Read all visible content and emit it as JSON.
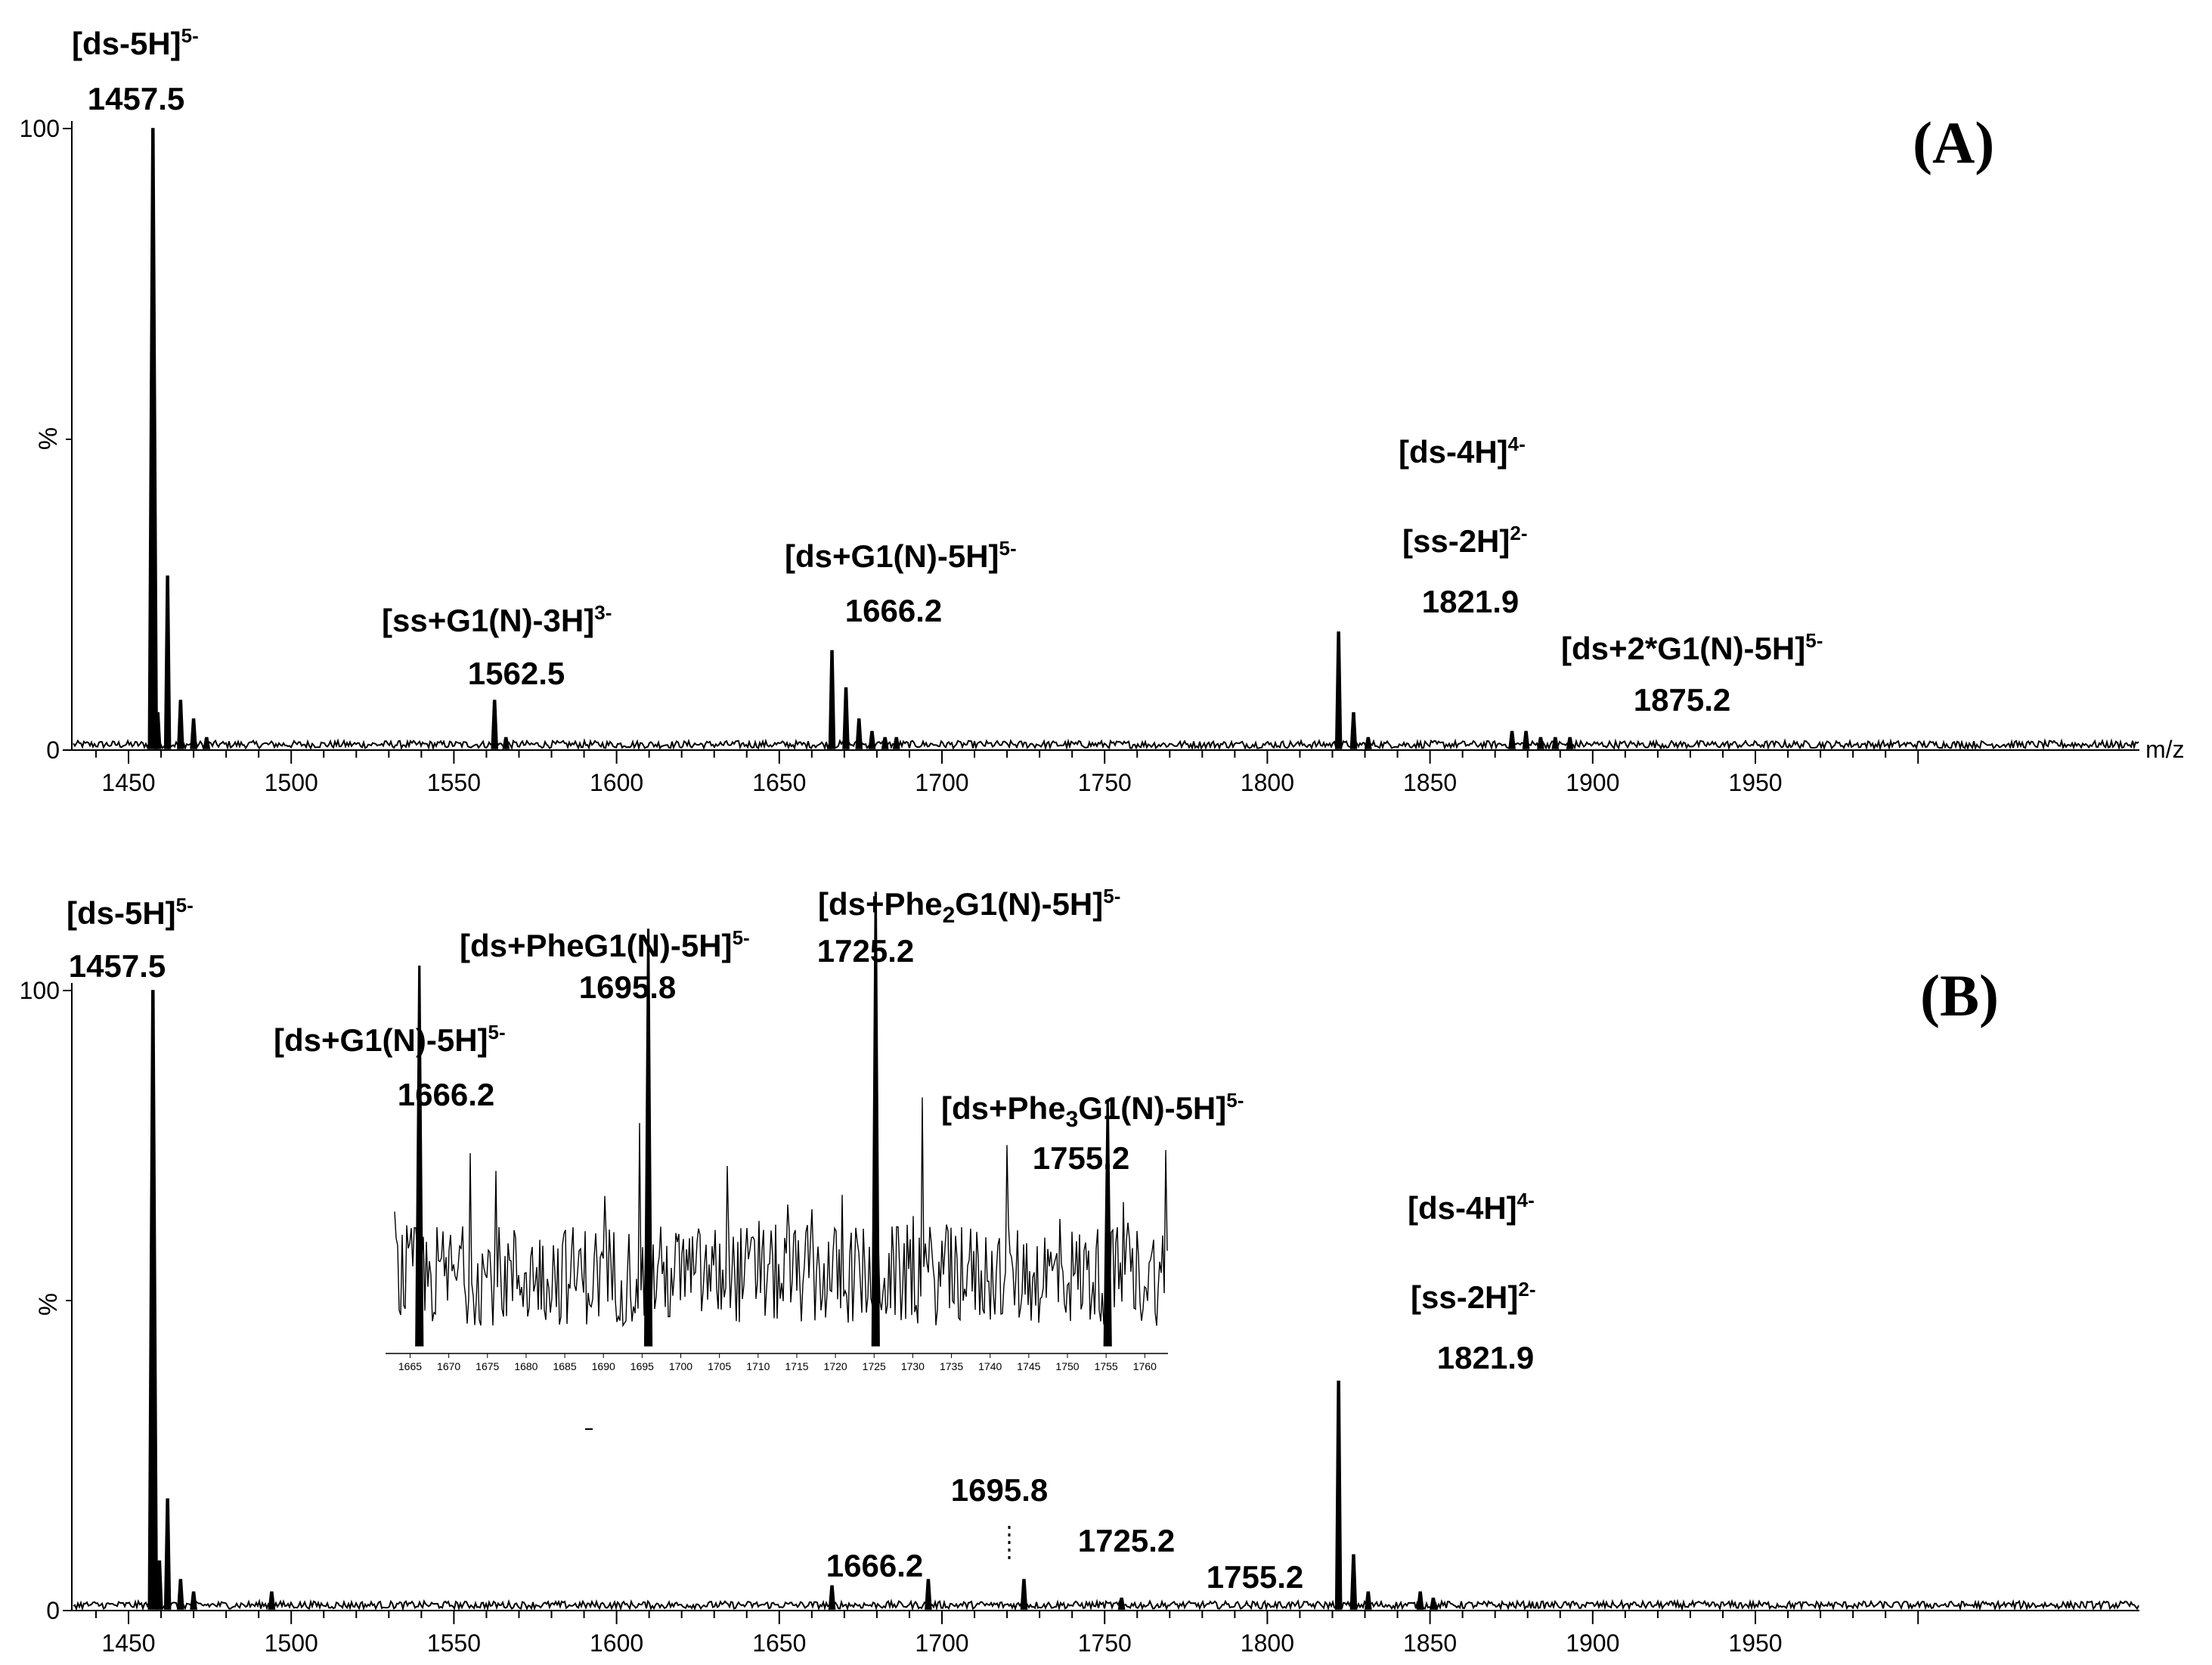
{
  "chart_data": [
    {
      "panel": "(A)",
      "type": "line",
      "title": "",
      "xlabel": "m/z",
      "ylabel": "%",
      "xlim": [
        1440,
        2000
      ],
      "ylim": [
        0,
        100
      ],
      "x_ticks": [
        1450,
        1500,
        1550,
        1600,
        1650,
        1700,
        1750,
        1800,
        1850,
        1900,
        1950
      ],
      "y_ticks": [
        0,
        100
      ],
      "peaks": [
        {
          "mz": 1457.5,
          "intensity": 100
        },
        {
          "mz": 1459.0,
          "intensity": 6
        },
        {
          "mz": 1462.0,
          "intensity": 28
        },
        {
          "mz": 1466.0,
          "intensity": 8
        },
        {
          "mz": 1470.0,
          "intensity": 5
        },
        {
          "mz": 1474.0,
          "intensity": 2
        },
        {
          "mz": 1562.5,
          "intensity": 8
        },
        {
          "mz": 1566.0,
          "intensity": 2
        },
        {
          "mz": 1666.2,
          "intensity": 16
        },
        {
          "mz": 1670.5,
          "intensity": 10
        },
        {
          "mz": 1674.5,
          "intensity": 5
        },
        {
          "mz": 1678.5,
          "intensity": 3
        },
        {
          "mz": 1682.5,
          "intensity": 2
        },
        {
          "mz": 1686.0,
          "intensity": 2
        },
        {
          "mz": 1821.9,
          "intensity": 19
        },
        {
          "mz": 1826.5,
          "intensity": 6
        },
        {
          "mz": 1831.0,
          "intensity": 2
        },
        {
          "mz": 1875.2,
          "intensity": 3
        },
        {
          "mz": 1879.5,
          "intensity": 3
        },
        {
          "mz": 1884.0,
          "intensity": 2
        },
        {
          "mz": 1888.5,
          "intensity": 2
        },
        {
          "mz": 1893.0,
          "intensity": 2
        }
      ],
      "annotations": [
        {
          "ion": "[ds-5H]",
          "charge": "5-",
          "mz_label": "1457.5"
        },
        {
          "ion": "[ss+G1(N)-3H]",
          "charge": "3-",
          "mz_label": "1562.5"
        },
        {
          "ion": "[ds+G1(N)-5H]",
          "charge": "5-",
          "mz_label": "1666.2"
        },
        {
          "ion": "[ds-4H]",
          "charge": "4-",
          "ion2": "[ss-2H]",
          "charge2": "2-",
          "mz_label": "1821.9"
        },
        {
          "ion": "[ds+2*G1(N)-5H]",
          "charge": "5-",
          "mz_label": "1875.2"
        }
      ]
    },
    {
      "panel": "(B)",
      "type": "line",
      "title": "",
      "xlabel": "",
      "ylabel": "%",
      "xlim": [
        1440,
        2000
      ],
      "ylim": [
        0,
        100
      ],
      "x_ticks": [
        1450,
        1500,
        1550,
        1600,
        1650,
        1700,
        1750,
        1800,
        1850,
        1900,
        1950
      ],
      "y_ticks": [
        0,
        100
      ],
      "peaks": [
        {
          "mz": 1457.5,
          "intensity": 100
        },
        {
          "mz": 1459.5,
          "intensity": 8
        },
        {
          "mz": 1462.0,
          "intensity": 18
        },
        {
          "mz": 1466.0,
          "intensity": 5
        },
        {
          "mz": 1470.0,
          "intensity": 3
        },
        {
          "mz": 1494.0,
          "intensity": 3
        },
        {
          "mz": 1666.2,
          "intensity": 4
        },
        {
          "mz": 1695.8,
          "intensity": 5
        },
        {
          "mz": 1725.2,
          "intensity": 5
        },
        {
          "mz": 1755.2,
          "intensity": 2
        },
        {
          "mz": 1821.9,
          "intensity": 37
        },
        {
          "mz": 1826.5,
          "intensity": 9
        },
        {
          "mz": 1831.0,
          "intensity": 3
        },
        {
          "mz": 1847.0,
          "intensity": 3
        },
        {
          "mz": 1851.0,
          "intensity": 2
        }
      ],
      "annotations": [
        {
          "ion": "[ds-5H]",
          "charge": "5-",
          "mz_label": "1457.5"
        },
        {
          "ion": "[ds-4H]",
          "charge": "4-",
          "ion2": "[ss-2H]",
          "charge2": "2-",
          "mz_label": "1821.9"
        }
      ],
      "main_peak_labels": [
        "1666.2",
        "1695.8",
        "1725.2",
        "1755.2"
      ],
      "inset": {
        "xlim": [
          1663,
          1763
        ],
        "x_ticks": [
          1665,
          1670,
          1675,
          1680,
          1685,
          1690,
          1695,
          1700,
          1705,
          1710,
          1715,
          1720,
          1725,
          1730,
          1735,
          1740,
          1745,
          1750,
          1755,
          1760
        ],
        "peaks": [
          {
            "mz": 1666.2,
            "intensity": 84
          },
          {
            "mz": 1695.8,
            "intensity": 92
          },
          {
            "mz": 1725.2,
            "intensity": 100
          },
          {
            "mz": 1755.2,
            "intensity": 55
          }
        ],
        "annotations": [
          {
            "ion_pre": "[ds+G1(N)-5H]",
            "sub": "",
            "ion_post": "",
            "charge": "5-",
            "mz_label": "1666.2"
          },
          {
            "ion_pre": "[ds+PheG1(N)-5H]",
            "sub": "",
            "ion_post": "",
            "charge": "5-",
            "mz_label": "1695.8"
          },
          {
            "ion_pre": "[ds+Phe",
            "sub": "2",
            "ion_post": "G1(N)-5H]",
            "charge": "5-",
            "mz_label": "1725.2"
          },
          {
            "ion_pre": "[ds+Phe",
            "sub": "3",
            "ion_post": "G1(N)-5H]",
            "charge": "5-",
            "mz_label": "1755.2"
          }
        ]
      }
    }
  ]
}
